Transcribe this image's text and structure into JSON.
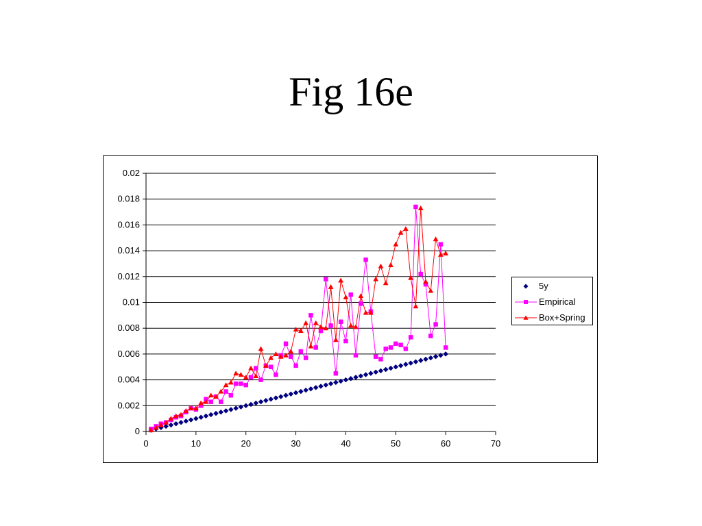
{
  "slide": {
    "title": "Fig 16e"
  },
  "chart_data": {
    "type": "line",
    "title": "",
    "xlabel": "",
    "ylabel": "",
    "xlim": [
      0,
      70
    ],
    "ylim": [
      0,
      0.02
    ],
    "x_ticks": [
      0,
      10,
      20,
      30,
      40,
      50,
      60,
      70
    ],
    "y_ticks": [
      0,
      0.002,
      0.004,
      0.006,
      0.008,
      0.01,
      0.012,
      0.014,
      0.016,
      0.018,
      0.02
    ],
    "x_tick_labels": [
      "0",
      "10",
      "20",
      "30",
      "40",
      "50",
      "60",
      "70"
    ],
    "y_tick_labels": [
      "0",
      "0.002",
      "0.004",
      "0.006",
      "0.008",
      "0.01",
      "0.012",
      "0.014",
      "0.016",
      "0.018",
      "0.02"
    ],
    "grid": "horizontal major gridlines",
    "legend_position": "right",
    "x": [
      1,
      2,
      3,
      4,
      5,
      6,
      7,
      8,
      9,
      10,
      11,
      12,
      13,
      14,
      15,
      16,
      17,
      18,
      19,
      20,
      21,
      22,
      23,
      24,
      25,
      26,
      27,
      28,
      29,
      30,
      31,
      32,
      33,
      34,
      35,
      36,
      37,
      38,
      39,
      40,
      41,
      42,
      43,
      44,
      45,
      46,
      47,
      48,
      49,
      50,
      51,
      52,
      53,
      54,
      55,
      56,
      57,
      58,
      59,
      60
    ],
    "series": [
      {
        "name": "5y",
        "color": "#000080",
        "marker": "diamond",
        "line": false,
        "values": [
          0.0001,
          0.0002,
          0.0003,
          0.0004,
          0.0005,
          0.0006,
          0.0007,
          0.0008,
          0.0009,
          0.001,
          0.0011,
          0.0012,
          0.0013,
          0.0014,
          0.0015,
          0.0016,
          0.0017,
          0.0018,
          0.0019,
          0.002,
          0.0021,
          0.0022,
          0.0023,
          0.0024,
          0.0025,
          0.0026,
          0.0027,
          0.0028,
          0.0029,
          0.003,
          0.0031,
          0.0032,
          0.0033,
          0.0034,
          0.0035,
          0.0036,
          0.0037,
          0.0038,
          0.0039,
          0.004,
          0.0041,
          0.0042,
          0.0043,
          0.0044,
          0.0045,
          0.0046,
          0.0047,
          0.0048,
          0.0049,
          0.005,
          0.0051,
          0.0052,
          0.0053,
          0.0054,
          0.0055,
          0.0056,
          0.0057,
          0.0058,
          0.0059,
          0.006
        ]
      },
      {
        "name": "Empirical",
        "color": "#ff00ff",
        "marker": "square",
        "line": true,
        "values": [
          0.0002,
          0.0004,
          0.0006,
          0.0007,
          0.0009,
          0.0011,
          0.0012,
          0.0015,
          0.0018,
          0.0017,
          0.002,
          0.0025,
          0.0023,
          0.0027,
          0.0023,
          0.0031,
          0.0028,
          0.0037,
          0.0037,
          0.0036,
          0.0042,
          0.0049,
          0.004,
          0.0051,
          0.005,
          0.0044,
          0.0059,
          0.0068,
          0.0058,
          0.0051,
          0.0062,
          0.0057,
          0.009,
          0.0065,
          0.0078,
          0.0118,
          0.0082,
          0.0045,
          0.0085,
          0.007,
          0.0106,
          0.0059,
          0.0099,
          0.0133,
          0.0093,
          0.0058,
          0.0056,
          0.0064,
          0.0065,
          0.0068,
          0.0067,
          0.0064,
          0.0073,
          0.0174,
          0.0122,
          0.0114,
          0.0074,
          0.0083,
          0.0145,
          0.0065
        ]
      },
      {
        "name": "Box+Spring",
        "color": "#ff0000",
        "marker": "triangle",
        "line": true,
        "values": [
          0.0001,
          0.0003,
          0.0005,
          0.0007,
          0.001,
          0.0012,
          0.0013,
          0.0016,
          0.0018,
          0.0018,
          0.0022,
          0.0023,
          0.0028,
          0.0027,
          0.0031,
          0.0036,
          0.0038,
          0.0045,
          0.0044,
          0.0042,
          0.0049,
          0.0043,
          0.0064,
          0.0051,
          0.0057,
          0.006,
          0.0058,
          0.0059,
          0.0062,
          0.0079,
          0.0078,
          0.0084,
          0.0066,
          0.0084,
          0.0081,
          0.008,
          0.0112,
          0.0071,
          0.0117,
          0.0104,
          0.0082,
          0.0081,
          0.0105,
          0.0092,
          0.0092,
          0.0118,
          0.0128,
          0.0115,
          0.0129,
          0.0145,
          0.0154,
          0.0157,
          0.0119,
          0.0097,
          0.0173,
          0.0116,
          0.0109,
          0.0149,
          0.0137,
          0.0138
        ]
      }
    ]
  }
}
